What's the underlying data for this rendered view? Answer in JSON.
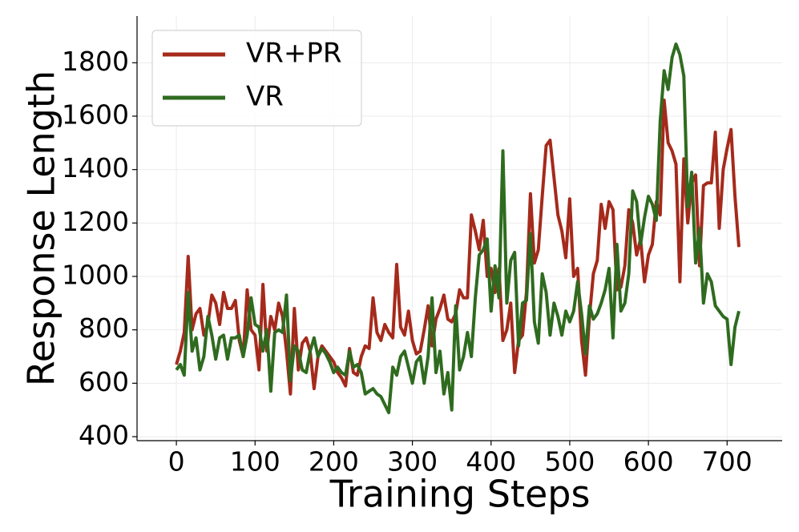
{
  "chart_data": {
    "type": "line",
    "xlabel": "Training Steps",
    "ylabel": "Response Length",
    "x": [
      0,
      5,
      10,
      15,
      20,
      25,
      30,
      35,
      40,
      45,
      50,
      55,
      60,
      65,
      70,
      75,
      80,
      85,
      90,
      95,
      100,
      105,
      110,
      115,
      120,
      125,
      130,
      135,
      140,
      145,
      150,
      155,
      160,
      165,
      170,
      175,
      180,
      185,
      190,
      195,
      200,
      205,
      210,
      215,
      220,
      225,
      230,
      235,
      240,
      245,
      250,
      255,
      260,
      265,
      270,
      275,
      280,
      285,
      290,
      295,
      300,
      305,
      310,
      315,
      320,
      325,
      330,
      335,
      340,
      345,
      350,
      355,
      360,
      365,
      370,
      375,
      380,
      385,
      390,
      395,
      400,
      405,
      410,
      415,
      420,
      425,
      430,
      435,
      440,
      445,
      450,
      455,
      460,
      465,
      470,
      475,
      480,
      485,
      490,
      495,
      500,
      505,
      510,
      515,
      520,
      525,
      530,
      535,
      540,
      545,
      550,
      555,
      560,
      565,
      570,
      575,
      580,
      585,
      590,
      595,
      600,
      605,
      610,
      615,
      620,
      625,
      630,
      635,
      640,
      645,
      650,
      655,
      660,
      665,
      670,
      675,
      680,
      685,
      690,
      695,
      700,
      705,
      710,
      715
    ],
    "series": [
      {
        "name": "VR+PR",
        "color": "#a52a1b",
        "values": [
          670,
          720,
          790,
          1075,
          800,
          860,
          880,
          780,
          820,
          930,
          900,
          820,
          940,
          880,
          880,
          910,
          760,
          700,
          950,
          800,
          780,
          650,
          970,
          720,
          850,
          800,
          900,
          850,
          720,
          560,
          880,
          650,
          750,
          770,
          720,
          580,
          700,
          740,
          720,
          700,
          680,
          640,
          620,
          590,
          730,
          640,
          630,
          700,
          740,
          730,
          920,
          790,
          760,
          820,
          790,
          770,
          1045,
          810,
          780,
          870,
          760,
          710,
          720,
          800,
          890,
          740,
          840,
          880,
          930,
          840,
          830,
          860,
          950,
          920,
          920,
          1230,
          1170,
          1100,
          1210,
          1000,
          1030,
          940,
          1030,
          760,
          800,
          900,
          640,
          760,
          780,
          940,
          1310,
          1050,
          1100,
          1300,
          1490,
          1510,
          1370,
          1230,
          1170,
          1070,
          1290,
          1000,
          1030,
          760,
          630,
          850,
          1010,
          1060,
          1270,
          1180,
          1280,
          1250,
          950,
          960,
          1040,
          1250,
          1200,
          1080,
          1140,
          980,
          1080,
          1120,
          1280,
          1230,
          1660,
          1500,
          1470,
          1420,
          980,
          1440,
          1200,
          1350,
          1380,
          1040,
          1340,
          1350,
          1350,
          1540,
          1180,
          1400,
          1480,
          1550,
          1300,
          1110
        ]
      },
      {
        "name": "VR",
        "color": "#2f6b1f",
        "values": [
          650,
          670,
          630,
          940,
          720,
          770,
          650,
          700,
          850,
          780,
          690,
          770,
          780,
          690,
          770,
          770,
          780,
          700,
          780,
          920,
          820,
          810,
          720,
          800,
          570,
          790,
          800,
          790,
          930,
          610,
          740,
          720,
          650,
          640,
          720,
          770,
          700,
          730,
          710,
          680,
          640,
          660,
          640,
          630,
          720,
          660,
          670,
          640,
          560,
          570,
          580,
          560,
          550,
          520,
          490,
          660,
          630,
          700,
          720,
          660,
          600,
          680,
          700,
          600,
          700,
          920,
          640,
          720,
          560,
          640,
          500,
          890,
          650,
          700,
          790,
          700,
          920,
          1080,
          1100,
          1140,
          870,
          1040,
          920,
          1470,
          900,
          1060,
          1090,
          740,
          900,
          910,
          1160,
          830,
          750,
          1010,
          940,
          780,
          900,
          850,
          780,
          870,
          830,
          870,
          980,
          860,
          710,
          890,
          840,
          860,
          900,
          950,
          1030,
          770,
          1120,
          870,
          900,
          1010,
          1320,
          1280,
          1120,
          1220,
          1300,
          1270,
          1210,
          1580,
          1770,
          1700,
          1820,
          1870,
          1830,
          1750,
          1260,
          1390,
          1050,
          1180,
          900,
          1010,
          980,
          890,
          870,
          850,
          840,
          670,
          810,
          870
        ]
      }
    ],
    "xlim": [
      -50,
      770
    ],
    "ylim": [
      385,
      1975
    ],
    "xticks": [
      0,
      100,
      200,
      300,
      400,
      500,
      600,
      700
    ],
    "yticks": [
      400,
      600,
      800,
      1000,
      1200,
      1400,
      1600,
      1800
    ],
    "grid": true,
    "legend": "upper left"
  }
}
